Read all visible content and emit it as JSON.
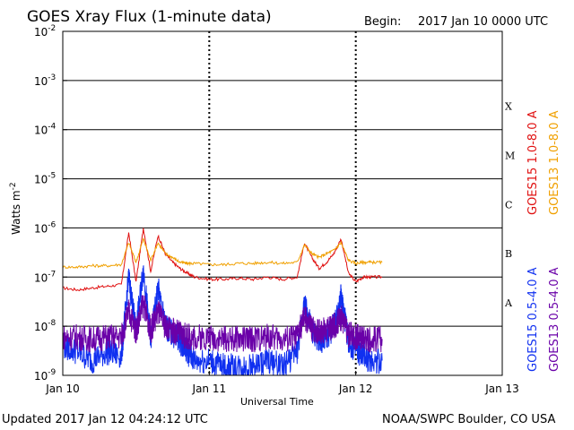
{
  "title": "GOES Xray Flux (1-minute data)",
  "begin_label": "Begin:",
  "begin_value": "2017 Jan 10 0000 UTC",
  "ylabel_main": "Watts m",
  "ylabel_exp": "-2",
  "xlabel": "Universal Time",
  "updated_text": "Updated 2017 Jan 12 04:24:12 UTC",
  "credit_text": "NOAA/SWPC Boulder, CO USA",
  "colors": {
    "goes15_long": "#e01010",
    "goes13_long": "#f0a000",
    "goes15_short": "#1030f0",
    "goes13_short": "#6a00a8",
    "grid": "#000000"
  },
  "chart_data": {
    "type": "line",
    "title": "GOES Xray Flux (1-minute data)",
    "xlabel": "Universal Time",
    "ylabel": "Watts m-2",
    "yscale": "log",
    "ylim": [
      1e-09,
      0.01
    ],
    "xlim": [
      "2017-01-10 00:00",
      "2017-01-13 00:00"
    ],
    "x_ticks": [
      "Jan 10",
      "Jan 11",
      "Jan 12",
      "Jan 13"
    ],
    "y_ticks": [
      {
        "base": "10",
        "exp": "-9"
      },
      {
        "base": "10",
        "exp": "-8"
      },
      {
        "base": "10",
        "exp": "-7"
      },
      {
        "base": "10",
        "exp": "-6"
      },
      {
        "base": "10",
        "exp": "-5"
      },
      {
        "base": "10",
        "exp": "-4"
      },
      {
        "base": "10",
        "exp": "-3"
      },
      {
        "base": "10",
        "exp": "-2"
      }
    ],
    "flare_classes": [
      {
        "label": "A",
        "flux": 3e-08
      },
      {
        "label": "B",
        "flux": 3e-07
      },
      {
        "label": "C",
        "flux": 3e-06
      },
      {
        "label": "M",
        "flux": 3e-05
      },
      {
        "label": "X",
        "flux": 0.0003
      }
    ],
    "grid": true,
    "legend_position": "right",
    "series": [
      {
        "name": "GOES15 1.0-8.0 A",
        "color": "#e01010",
        "x": [
          0,
          0.1,
          0.2,
          0.3,
          0.4,
          0.45,
          0.5,
          0.55,
          0.6,
          0.65,
          0.7,
          0.75,
          0.8,
          0.85,
          0.9,
          1.0,
          1.1,
          1.2,
          1.3,
          1.4,
          1.5,
          1.6,
          1.65,
          1.7,
          1.75,
          1.8,
          1.85,
          1.9,
          1.95,
          2.0,
          2.05,
          2.1,
          2.18
        ],
        "y": [
          6e-08,
          5.5e-08,
          6e-08,
          6.5e-08,
          7e-08,
          8e-07,
          8e-08,
          1e-06,
          1.3e-07,
          7e-07,
          3e-07,
          2e-07,
          1.5e-07,
          1.2e-07,
          1e-07,
          9e-08,
          9e-08,
          9.5e-08,
          9e-08,
          1e-07,
          9e-08,
          1e-07,
          5e-07,
          2.5e-07,
          1.5e-07,
          2e-07,
          3e-07,
          6e-07,
          1.2e-07,
          8e-08,
          1e-07,
          1e-07,
          1e-07
        ]
      },
      {
        "name": "GOES13 1.0-8.0 A",
        "color": "#f0a000",
        "x": [
          0,
          0.1,
          0.2,
          0.3,
          0.4,
          0.45,
          0.5,
          0.55,
          0.6,
          0.65,
          0.7,
          0.75,
          0.8,
          0.85,
          0.9,
          1.0,
          1.1,
          1.2,
          1.3,
          1.4,
          1.5,
          1.6,
          1.65,
          1.7,
          1.75,
          1.8,
          1.85,
          1.9,
          1.95,
          2.0,
          2.05,
          2.1,
          2.18
        ],
        "y": [
          1.6e-07,
          1.6e-07,
          1.7e-07,
          1.7e-07,
          1.8e-07,
          5e-07,
          2e-07,
          6e-07,
          2.2e-07,
          5e-07,
          3e-07,
          2.5e-07,
          2e-07,
          1.9e-07,
          1.9e-07,
          1.8e-07,
          1.8e-07,
          1.9e-07,
          1.9e-07,
          2e-07,
          1.9e-07,
          2e-07,
          4.5e-07,
          3e-07,
          2.5e-07,
          3e-07,
          3.5e-07,
          5e-07,
          2.2e-07,
          1.9e-07,
          2e-07,
          2e-07,
          2e-07
        ]
      },
      {
        "name": "GOES15 0.5-4.0 A",
        "color": "#1030f0",
        "x": [
          0,
          0.1,
          0.2,
          0.3,
          0.4,
          0.45,
          0.5,
          0.55,
          0.6,
          0.65,
          0.7,
          0.75,
          0.8,
          0.85,
          0.9,
          1.0,
          1.1,
          1.2,
          1.3,
          1.4,
          1.5,
          1.6,
          1.65,
          1.7,
          1.75,
          1.8,
          1.85,
          1.9,
          1.95,
          2.0,
          2.05,
          2.1,
          2.18
        ],
        "y": [
          4e-09,
          3e-09,
          2e-09,
          3e-09,
          2.5e-09,
          1e-07,
          8e-09,
          1.5e-07,
          5e-09,
          6e-08,
          1e-08,
          7e-09,
          5e-09,
          3e-09,
          2e-09,
          2e-09,
          1.5e-09,
          1.5e-09,
          1.5e-09,
          2e-09,
          1.5e-09,
          3e-09,
          3e-08,
          8e-09,
          5e-09,
          6e-09,
          1e-08,
          4e-08,
          5e-09,
          3e-09,
          2.5e-09,
          2e-09,
          2e-09
        ]
      },
      {
        "name": "GOES13 0.5-4.0 A",
        "color": "#6a00a8",
        "x": [
          0,
          0.1,
          0.2,
          0.3,
          0.4,
          0.45,
          0.5,
          0.55,
          0.6,
          0.65,
          0.7,
          0.75,
          0.8,
          0.85,
          0.9,
          1.0,
          1.1,
          1.2,
          1.3,
          1.4,
          1.5,
          1.6,
          1.65,
          1.7,
          1.75,
          1.8,
          1.85,
          1.9,
          1.95,
          2.0,
          2.05,
          2.1,
          2.18
        ],
        "y": [
          6e-09,
          6e-09,
          5.5e-09,
          6e-09,
          6e-09,
          2e-08,
          8e-09,
          3e-08,
          8e-09,
          2e-08,
          1e-08,
          8e-09,
          7e-09,
          6e-09,
          6e-09,
          6e-09,
          5.5e-09,
          5.5e-09,
          5.5e-09,
          6e-09,
          5.5e-09,
          6e-09,
          1.5e-08,
          9e-09,
          8e-09,
          8e-09,
          1e-08,
          1.5e-08,
          7e-09,
          6e-09,
          6e-09,
          5.5e-09,
          5.5e-09
        ]
      }
    ]
  }
}
